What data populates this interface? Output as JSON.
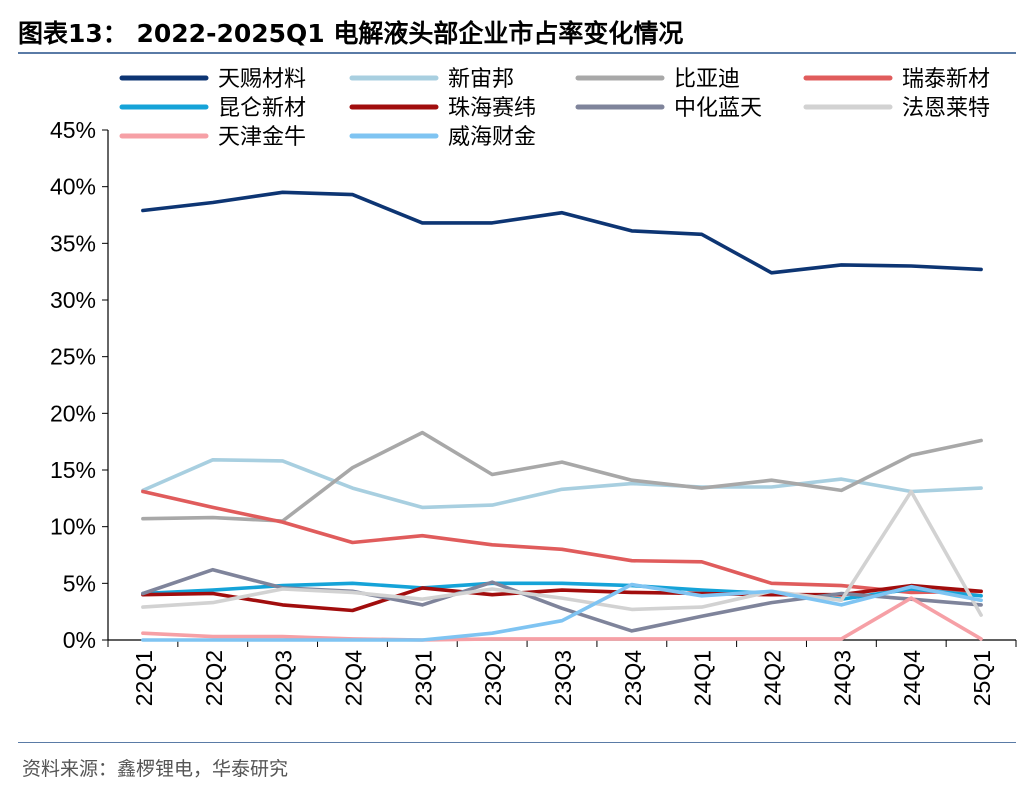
{
  "title": "图表13： 2022-2025Q1 电解液头部企业市占率变化情况",
  "source": "资料来源：鑫椤锂电，华泰研究",
  "chart_data": {
    "type": "line",
    "categories": [
      "22Q1",
      "22Q2",
      "22Q3",
      "22Q4",
      "23Q1",
      "23Q2",
      "23Q3",
      "23Q4",
      "24Q1",
      "24Q2",
      "24Q3",
      "24Q4",
      "25Q1"
    ],
    "ylim": [
      0,
      45
    ],
    "yticks": [
      "0%",
      "5%",
      "10%",
      "15%",
      "20%",
      "25%",
      "30%",
      "35%",
      "40%",
      "45%"
    ],
    "legend_position": "top",
    "series": [
      {
        "name": "天赐材料",
        "color": "#0d3573",
        "values": [
          37.9,
          38.6,
          39.5,
          39.3,
          36.8,
          36.8,
          37.7,
          36.1,
          35.8,
          32.4,
          33.1,
          33.0,
          32.7
        ]
      },
      {
        "name": "新宙邦",
        "color": "#a8cfe0",
        "values": [
          13.2,
          15.9,
          15.8,
          13.4,
          11.7,
          11.9,
          13.3,
          13.8,
          13.5,
          13.5,
          14.2,
          13.1,
          13.4
        ]
      },
      {
        "name": "比亚迪",
        "color": "#a8a8a8",
        "values": [
          10.7,
          10.8,
          10.5,
          15.2,
          18.3,
          14.6,
          15.7,
          14.1,
          13.4,
          14.1,
          13.2,
          16.3,
          17.6
        ]
      },
      {
        "name": "瑞泰新材",
        "color": "#e05c5c",
        "values": [
          13.1,
          11.7,
          10.4,
          8.6,
          9.2,
          8.4,
          8.0,
          7.0,
          6.9,
          5.0,
          4.8,
          4.2,
          4.3
        ]
      },
      {
        "name": "昆仑新材",
        "color": "#15a3d8",
        "values": [
          4.1,
          4.4,
          4.8,
          5.0,
          4.6,
          5.0,
          5.0,
          4.8,
          4.4,
          4.1,
          3.6,
          4.5,
          3.9
        ]
      },
      {
        "name": "珠海赛纬",
        "color": "#a10d0d",
        "values": [
          4.0,
          4.1,
          3.1,
          2.6,
          4.6,
          4.0,
          4.4,
          4.2,
          4.1,
          4.0,
          4.0,
          4.8,
          4.3
        ]
      },
      {
        "name": "中化蓝天",
        "color": "#7f849b",
        "values": [
          4.1,
          6.2,
          4.6,
          4.3,
          3.1,
          5.1,
          2.8,
          0.8,
          2.1,
          3.3,
          4.1,
          3.6,
          3.1
        ]
      },
      {
        "name": "法恩莱特",
        "color": "#d2d2d2",
        "values": [
          2.9,
          3.3,
          4.5,
          4.2,
          3.6,
          4.5,
          3.7,
          2.7,
          2.9,
          4.3,
          3.5,
          13.1,
          2.2
        ]
      },
      {
        "name": "天津金牛",
        "color": "#f6a0a6",
        "values": [
          0.6,
          0.3,
          0.3,
          0.1,
          0.0,
          0.1,
          0.1,
          0.1,
          0.1,
          0.1,
          0.1,
          3.7,
          0.1
        ]
      },
      {
        "name": "威海财金",
        "color": "#7fc4f2",
        "values": [
          0.0,
          0.0,
          0.0,
          0.0,
          0.0,
          0.6,
          1.7,
          4.9,
          3.9,
          4.3,
          3.1,
          4.7,
          3.5
        ]
      }
    ]
  }
}
